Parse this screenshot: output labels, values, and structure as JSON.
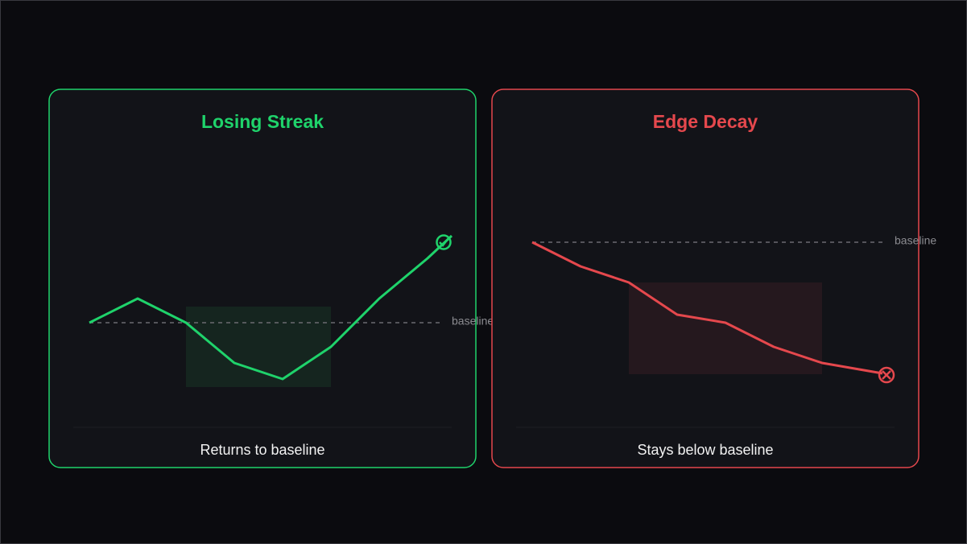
{
  "panels": [
    {
      "title": "Losing Streak",
      "baseline_label": "baseline",
      "caption": "Returns to baseline"
    },
    {
      "title": "Edge Decay",
      "baseline_label": "baseline",
      "caption": "Stays below baseline"
    }
  ]
}
